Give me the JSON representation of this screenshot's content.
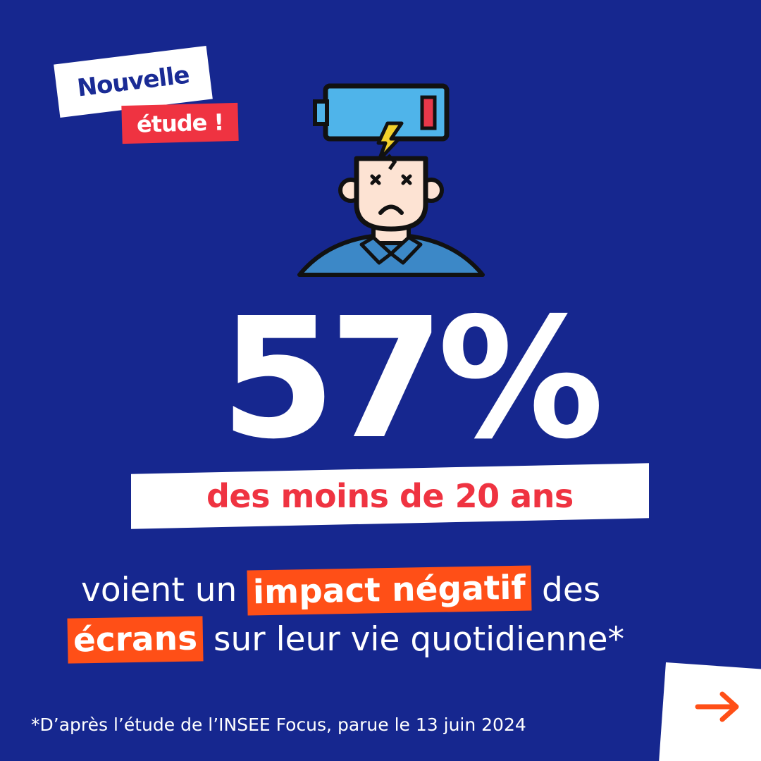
{
  "badge": {
    "line1": "Nouvelle",
    "line2": "étude !"
  },
  "stat": {
    "value": "57%",
    "subject": "des moins de 20 ans"
  },
  "statement": {
    "line1_before": "voient un",
    "line1_highlight": "impact négatif",
    "line1_after": "des",
    "line2_highlight": "écrans",
    "line2_after": "sur leur vie quotidienne*"
  },
  "footnote": "*D’après l’étude de l’INSEE Focus, parue le 13 juin 2024",
  "icons": {
    "illustration": "tired-person-low-battery-icon",
    "next": "arrow-right-icon"
  },
  "colors": {
    "background": "#16278f",
    "red": "#ef3341",
    "orange": "#ff4f17",
    "white": "#ffffff"
  }
}
